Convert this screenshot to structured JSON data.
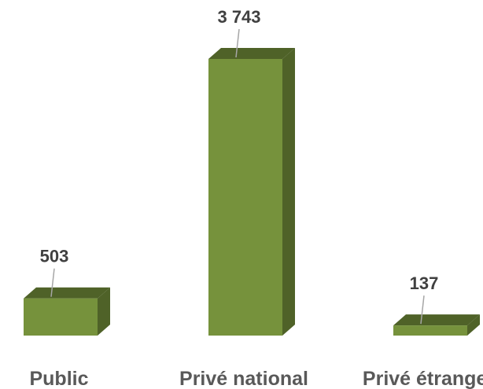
{
  "chart_data": {
    "type": "bar",
    "categories": [
      "Public",
      "Privé national",
      "Privé étranger"
    ],
    "values": [
      503,
      3743,
      137
    ],
    "data_labels": [
      "503",
      "3 743",
      "137"
    ],
    "title": "",
    "xlabel": "",
    "ylabel": "",
    "ylim": [
      0,
      3743
    ],
    "grid": false,
    "legend": "none",
    "style": "3d-column"
  },
  "colors": {
    "bar_front": "#76923c",
    "bar_top": "#4f6228",
    "bar_side": "#4f6228",
    "data_label": "#404040",
    "category_label": "#595959",
    "leader_line": "#a6a6a6"
  }
}
